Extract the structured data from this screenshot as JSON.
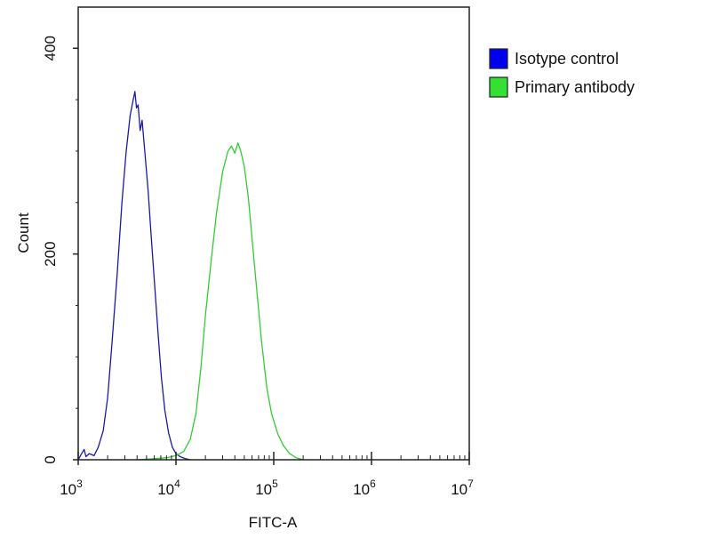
{
  "chart_data": {
    "type": "line",
    "title": "",
    "xlabel": "FITC-A",
    "ylabel": "Count",
    "x_scale": "log",
    "xlim": [
      1000,
      10000000
    ],
    "ylim": [
      0,
      440
    ],
    "grid": false,
    "legend_position": "right",
    "x_ticks": [
      {
        "value": 1000,
        "base": "10",
        "exp": "3"
      },
      {
        "value": 10000,
        "base": "10",
        "exp": "4"
      },
      {
        "value": 100000,
        "base": "10",
        "exp": "5"
      },
      {
        "value": 1000000,
        "base": "10",
        "exp": "6"
      },
      {
        "value": 10000000,
        "base": "10",
        "exp": "7"
      }
    ],
    "y_ticks": [
      {
        "value": 0,
        "label": "0"
      },
      {
        "value": 200,
        "label": "200"
      },
      {
        "value": 400,
        "label": "400"
      }
    ],
    "series": [
      {
        "name": "Isotype control",
        "color": "#1a1aa8",
        "swatch_color": "#0000ee",
        "points": [
          [
            1000,
            0
          ],
          [
            1070,
            5
          ],
          [
            1150,
            10
          ],
          [
            1200,
            3
          ],
          [
            1300,
            6
          ],
          [
            1450,
            4
          ],
          [
            1600,
            12
          ],
          [
            1800,
            28
          ],
          [
            2000,
            60
          ],
          [
            2200,
            110
          ],
          [
            2500,
            180
          ],
          [
            2800,
            250
          ],
          [
            3100,
            300
          ],
          [
            3400,
            335
          ],
          [
            3650,
            350
          ],
          [
            3800,
            358
          ],
          [
            3950,
            342
          ],
          [
            4100,
            345
          ],
          [
            4300,
            320
          ],
          [
            4500,
            330
          ],
          [
            4800,
            300
          ],
          [
            5200,
            260
          ],
          [
            5600,
            215
          ],
          [
            6100,
            165
          ],
          [
            6600,
            120
          ],
          [
            7100,
            80
          ],
          [
            7700,
            48
          ],
          [
            8400,
            26
          ],
          [
            9200,
            12
          ],
          [
            10000,
            6
          ],
          [
            11000,
            3
          ],
          [
            12500,
            1
          ],
          [
            14000,
            0
          ]
        ]
      },
      {
        "name": "Primary antibody",
        "color": "#33cc33",
        "swatch_color": "#33e033",
        "points": [
          [
            4000,
            0
          ],
          [
            6000,
            1
          ],
          [
            8000,
            2
          ],
          [
            10000,
            4
          ],
          [
            12000,
            8
          ],
          [
            14000,
            20
          ],
          [
            16000,
            45
          ],
          [
            18000,
            90
          ],
          [
            20000,
            140
          ],
          [
            23000,
            195
          ],
          [
            26000,
            240
          ],
          [
            30000,
            280
          ],
          [
            34000,
            300
          ],
          [
            37000,
            305
          ],
          [
            40000,
            298
          ],
          [
            43000,
            308
          ],
          [
            46000,
            300
          ],
          [
            50000,
            285
          ],
          [
            55000,
            255
          ],
          [
            60000,
            215
          ],
          [
            67000,
            165
          ],
          [
            75000,
            115
          ],
          [
            85000,
            70
          ],
          [
            95000,
            45
          ],
          [
            110000,
            25
          ],
          [
            125000,
            14
          ],
          [
            145000,
            6
          ],
          [
            170000,
            2
          ],
          [
            200000,
            0
          ]
        ]
      }
    ]
  }
}
